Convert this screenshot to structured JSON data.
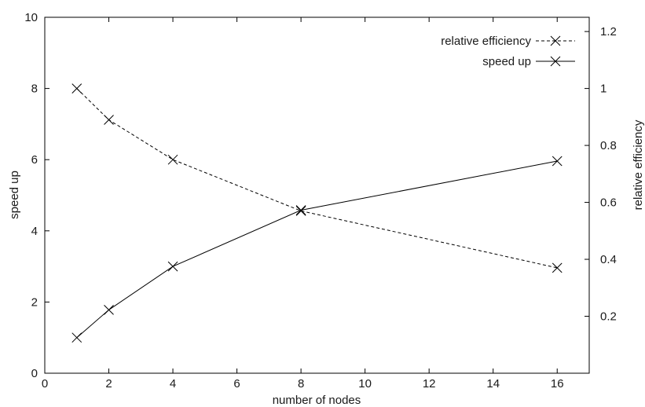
{
  "chart_data": {
    "type": "line",
    "xlabel": "number of nodes",
    "ylabel": "speed up",
    "y2label": "relative efficiency",
    "xlim": [
      0,
      17
    ],
    "ylim": [
      0,
      10
    ],
    "y2lim": [
      0,
      1.25
    ],
    "x_ticks": [
      "0",
      "2",
      "4",
      "6",
      "8",
      "10",
      "12",
      "14",
      "16"
    ],
    "y_ticks": [
      "0",
      "2",
      "4",
      "6",
      "8",
      "10"
    ],
    "y2_ticks": [
      "0.2",
      "0.4",
      "0.6",
      "0.8",
      "1",
      "1.2"
    ],
    "legend_position": "top-right",
    "grid": false,
    "series": [
      {
        "name": "relative efficiency",
        "axis": "right",
        "line_style": "dashed",
        "marker": "x",
        "x": [
          1,
          2,
          4,
          8,
          16
        ],
        "values": [
          1.0,
          0.89,
          0.75,
          0.57,
          0.37
        ]
      },
      {
        "name": "speed up",
        "axis": "left",
        "line_style": "solid",
        "marker": "x",
        "x": [
          1,
          2,
          4,
          8,
          16
        ],
        "values": [
          1.0,
          1.78,
          3.0,
          4.58,
          5.96
        ]
      }
    ]
  }
}
